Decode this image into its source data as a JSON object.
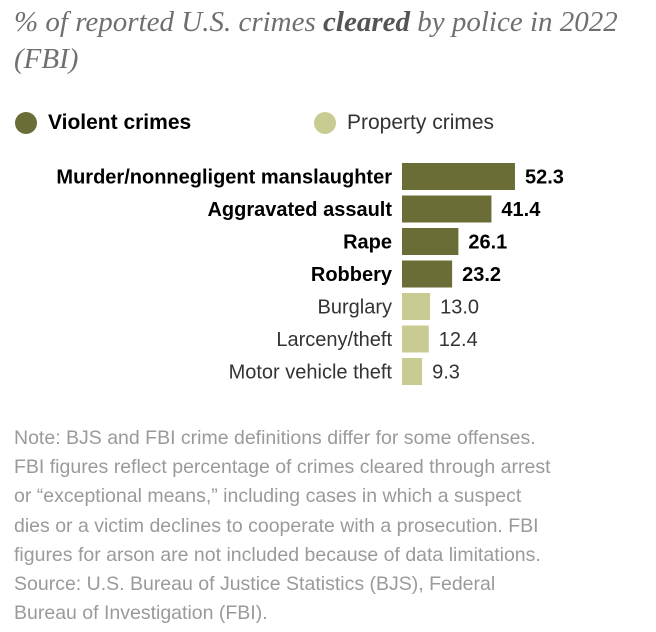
{
  "title": {
    "before": "% of reported U.S. crimes ",
    "emphasis": "cleared",
    "after": " by police in 2022 (FBI)"
  },
  "legend": {
    "violent": {
      "label": "Violent crimes",
      "color": "#6b6d36"
    },
    "property": {
      "label": "Property crimes",
      "color": "#c9cc92"
    }
  },
  "chart_data": {
    "type": "bar",
    "orientation": "horizontal",
    "categories": [
      "Murder/nonnegligent manslaughter",
      "Aggravated assault",
      "Rape",
      "Robbery",
      "Burglary",
      "Larceny/theft",
      "Motor vehicle theft"
    ],
    "values": [
      52.3,
      41.4,
      26.1,
      23.2,
      13.0,
      12.4,
      9.3
    ],
    "value_labels": [
      "52.3",
      "41.4",
      "26.1",
      "23.2",
      "13.0",
      "12.4",
      "9.3"
    ],
    "groups": [
      "violent",
      "violent",
      "violent",
      "violent",
      "property",
      "property",
      "property"
    ],
    "series": [
      {
        "name": "Violent crimes",
        "color": "#6b6d36"
      },
      {
        "name": "Property crimes",
        "color": "#c9cc92"
      }
    ],
    "xlim": [
      0,
      100
    ],
    "grid": false,
    "legend_position": "top"
  },
  "note": {
    "lines": [
      "Note: BJS and FBI crime definitions differ for some offenses.",
      "FBI figures reflect percentage of crimes cleared through arrest",
      "or “exceptional means,” including cases in which a suspect",
      "dies or a victim declines to cooperate with a prosecution. FBI",
      "figures for arson are not included because of data limitations.",
      "Source: U.S. Bureau of Justice Statistics (BJS), Federal",
      "Bureau of Investigation (FBI)."
    ]
  }
}
